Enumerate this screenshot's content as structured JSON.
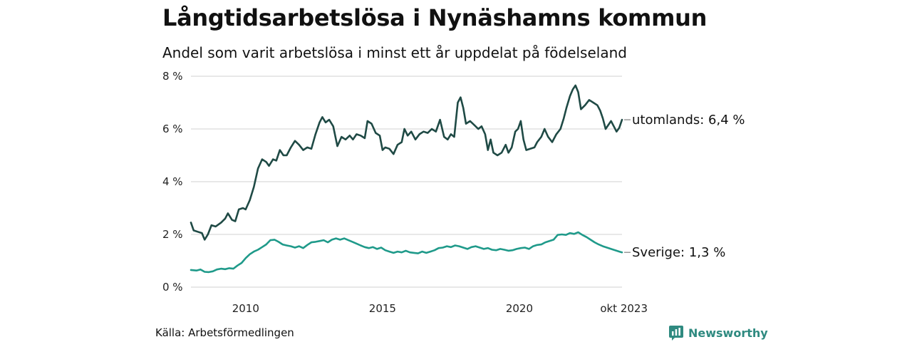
{
  "title": "Långtidsarbetslösa i Nynäshamns kommun",
  "subtitle": "Andel som varit arbetslösa i minst ett år uppdelat på födelseland",
  "source": "Källa: Arbetsförmedlingen",
  "brand": "Newsworthy",
  "colors": {
    "utomlands": "#1f4a45",
    "sverige": "#1f9a8a",
    "grid": "#d9d9d9",
    "brand": "#2f8a80"
  },
  "chart_data": {
    "type": "line",
    "title": "Långtidsarbetslösa i Nynäshamns kommun",
    "subtitle": "Andel som varit arbetslösa i minst ett år uppdelat på födelseland",
    "xlabel": "",
    "ylabel": "",
    "x_start": 2008.0,
    "x_end": 2023.75,
    "xlim": [
      2008.0,
      2023.75
    ],
    "ylim": [
      0,
      8
    ],
    "y_ticks": [
      {
        "value": 0,
        "label": "0 %"
      },
      {
        "value": 2,
        "label": "2 %"
      },
      {
        "value": 4,
        "label": "4 %"
      },
      {
        "value": 6,
        "label": "6 %"
      },
      {
        "value": 8,
        "label": "8 %"
      }
    ],
    "x_ticks": [
      {
        "value": 2010,
        "label": "2010"
      },
      {
        "value": 2015,
        "label": "2015"
      },
      {
        "value": 2020,
        "label": "2020"
      },
      {
        "value": 2023.75,
        "label": "okt 2023"
      }
    ],
    "series": [
      {
        "name": "utomlands",
        "end_label": "utomlands: 6,4 %",
        "points": [
          [
            2008.0,
            2.45
          ],
          [
            2008.1,
            2.15
          ],
          [
            2008.25,
            2.1
          ],
          [
            2008.4,
            2.05
          ],
          [
            2008.5,
            1.8
          ],
          [
            2008.62,
            2.0
          ],
          [
            2008.75,
            2.35
          ],
          [
            2008.9,
            2.3
          ],
          [
            2009.1,
            2.45
          ],
          [
            2009.25,
            2.6
          ],
          [
            2009.35,
            2.8
          ],
          [
            2009.5,
            2.55
          ],
          [
            2009.62,
            2.5
          ],
          [
            2009.75,
            2.95
          ],
          [
            2009.9,
            3.0
          ],
          [
            2010.0,
            2.95
          ],
          [
            2010.15,
            3.3
          ],
          [
            2010.3,
            3.8
          ],
          [
            2010.45,
            4.5
          ],
          [
            2010.6,
            4.85
          ],
          [
            2010.75,
            4.75
          ],
          [
            2010.85,
            4.6
          ],
          [
            2011.0,
            4.85
          ],
          [
            2011.12,
            4.8
          ],
          [
            2011.25,
            5.2
          ],
          [
            2011.38,
            5.0
          ],
          [
            2011.5,
            5.0
          ],
          [
            2011.65,
            5.3
          ],
          [
            2011.8,
            5.55
          ],
          [
            2011.95,
            5.4
          ],
          [
            2012.1,
            5.2
          ],
          [
            2012.25,
            5.3
          ],
          [
            2012.4,
            5.25
          ],
          [
            2012.55,
            5.8
          ],
          [
            2012.7,
            6.25
          ],
          [
            2012.8,
            6.45
          ],
          [
            2012.92,
            6.25
          ],
          [
            2013.05,
            6.35
          ],
          [
            2013.2,
            6.1
          ],
          [
            2013.35,
            5.35
          ],
          [
            2013.5,
            5.7
          ],
          [
            2013.65,
            5.6
          ],
          [
            2013.8,
            5.75
          ],
          [
            2013.92,
            5.6
          ],
          [
            2014.05,
            5.8
          ],
          [
            2014.2,
            5.75
          ],
          [
            2014.35,
            5.65
          ],
          [
            2014.45,
            6.3
          ],
          [
            2014.6,
            6.2
          ],
          [
            2014.75,
            5.85
          ],
          [
            2014.9,
            5.75
          ],
          [
            2015.0,
            5.2
          ],
          [
            2015.1,
            5.3
          ],
          [
            2015.25,
            5.25
          ],
          [
            2015.4,
            5.05
          ],
          [
            2015.55,
            5.4
          ],
          [
            2015.7,
            5.5
          ],
          [
            2015.8,
            6.0
          ],
          [
            2015.92,
            5.75
          ],
          [
            2016.05,
            5.9
          ],
          [
            2016.2,
            5.6
          ],
          [
            2016.35,
            5.8
          ],
          [
            2016.5,
            5.9
          ],
          [
            2016.65,
            5.85
          ],
          [
            2016.8,
            6.0
          ],
          [
            2016.95,
            5.9
          ],
          [
            2017.1,
            6.35
          ],
          [
            2017.25,
            5.7
          ],
          [
            2017.38,
            5.6
          ],
          [
            2017.5,
            5.8
          ],
          [
            2017.62,
            5.7
          ],
          [
            2017.75,
            7.0
          ],
          [
            2017.85,
            7.2
          ],
          [
            2017.95,
            6.8
          ],
          [
            2018.05,
            6.2
          ],
          [
            2018.2,
            6.3
          ],
          [
            2018.35,
            6.15
          ],
          [
            2018.5,
            6.0
          ],
          [
            2018.62,
            6.1
          ],
          [
            2018.75,
            5.8
          ],
          [
            2018.85,
            5.2
          ],
          [
            2018.95,
            5.6
          ],
          [
            2019.05,
            5.1
          ],
          [
            2019.2,
            5.0
          ],
          [
            2019.35,
            5.1
          ],
          [
            2019.5,
            5.4
          ],
          [
            2019.6,
            5.1
          ],
          [
            2019.72,
            5.3
          ],
          [
            2019.85,
            5.9
          ],
          [
            2019.95,
            6.0
          ],
          [
            2020.05,
            6.3
          ],
          [
            2020.15,
            5.6
          ],
          [
            2020.25,
            5.2
          ],
          [
            2020.4,
            5.25
          ],
          [
            2020.55,
            5.3
          ],
          [
            2020.65,
            5.5
          ],
          [
            2020.8,
            5.7
          ],
          [
            2020.92,
            6.0
          ],
          [
            2021.05,
            5.7
          ],
          [
            2021.2,
            5.5
          ],
          [
            2021.35,
            5.8
          ],
          [
            2021.5,
            6.0
          ],
          [
            2021.62,
            6.4
          ],
          [
            2021.72,
            6.8
          ],
          [
            2021.85,
            7.25
          ],
          [
            2021.95,
            7.5
          ],
          [
            2022.05,
            7.65
          ],
          [
            2022.15,
            7.4
          ],
          [
            2022.25,
            6.75
          ],
          [
            2022.4,
            6.9
          ],
          [
            2022.55,
            7.1
          ],
          [
            2022.7,
            7.0
          ],
          [
            2022.85,
            6.9
          ],
          [
            2022.95,
            6.7
          ],
          [
            2023.05,
            6.4
          ],
          [
            2023.15,
            6.0
          ],
          [
            2023.25,
            6.15
          ],
          [
            2023.35,
            6.3
          ],
          [
            2023.45,
            6.1
          ],
          [
            2023.55,
            5.9
          ],
          [
            2023.65,
            6.05
          ],
          [
            2023.75,
            6.35
          ]
        ]
      },
      {
        "name": "Sverige",
        "end_label": "Sverige: 1,3 %",
        "points": [
          [
            2008.0,
            0.65
          ],
          [
            2008.2,
            0.63
          ],
          [
            2008.35,
            0.67
          ],
          [
            2008.5,
            0.58
          ],
          [
            2008.65,
            0.57
          ],
          [
            2008.8,
            0.6
          ],
          [
            2008.95,
            0.67
          ],
          [
            2009.1,
            0.7
          ],
          [
            2009.25,
            0.68
          ],
          [
            2009.4,
            0.72
          ],
          [
            2009.55,
            0.7
          ],
          [
            2009.7,
            0.82
          ],
          [
            2009.85,
            0.92
          ],
          [
            2010.0,
            1.1
          ],
          [
            2010.15,
            1.25
          ],
          [
            2010.3,
            1.35
          ],
          [
            2010.45,
            1.42
          ],
          [
            2010.6,
            1.52
          ],
          [
            2010.75,
            1.62
          ],
          [
            2010.9,
            1.78
          ],
          [
            2011.05,
            1.8
          ],
          [
            2011.2,
            1.72
          ],
          [
            2011.35,
            1.62
          ],
          [
            2011.5,
            1.58
          ],
          [
            2011.65,
            1.55
          ],
          [
            2011.8,
            1.5
          ],
          [
            2011.95,
            1.55
          ],
          [
            2012.1,
            1.48
          ],
          [
            2012.25,
            1.6
          ],
          [
            2012.4,
            1.7
          ],
          [
            2012.55,
            1.72
          ],
          [
            2012.7,
            1.75
          ],
          [
            2012.85,
            1.78
          ],
          [
            2013.0,
            1.7
          ],
          [
            2013.15,
            1.8
          ],
          [
            2013.3,
            1.85
          ],
          [
            2013.45,
            1.8
          ],
          [
            2013.6,
            1.85
          ],
          [
            2013.75,
            1.78
          ],
          [
            2013.9,
            1.72
          ],
          [
            2014.05,
            1.65
          ],
          [
            2014.2,
            1.58
          ],
          [
            2014.35,
            1.52
          ],
          [
            2014.5,
            1.48
          ],
          [
            2014.65,
            1.52
          ],
          [
            2014.8,
            1.45
          ],
          [
            2014.95,
            1.5
          ],
          [
            2015.1,
            1.4
          ],
          [
            2015.25,
            1.35
          ],
          [
            2015.4,
            1.3
          ],
          [
            2015.55,
            1.35
          ],
          [
            2015.7,
            1.32
          ],
          [
            2015.85,
            1.38
          ],
          [
            2016.0,
            1.32
          ],
          [
            2016.15,
            1.3
          ],
          [
            2016.3,
            1.28
          ],
          [
            2016.45,
            1.35
          ],
          [
            2016.6,
            1.3
          ],
          [
            2016.75,
            1.35
          ],
          [
            2016.9,
            1.4
          ],
          [
            2017.05,
            1.48
          ],
          [
            2017.2,
            1.5
          ],
          [
            2017.35,
            1.55
          ],
          [
            2017.5,
            1.52
          ],
          [
            2017.65,
            1.58
          ],
          [
            2017.8,
            1.55
          ],
          [
            2017.95,
            1.5
          ],
          [
            2018.1,
            1.45
          ],
          [
            2018.25,
            1.52
          ],
          [
            2018.4,
            1.55
          ],
          [
            2018.55,
            1.5
          ],
          [
            2018.7,
            1.45
          ],
          [
            2018.85,
            1.48
          ],
          [
            2019.0,
            1.42
          ],
          [
            2019.15,
            1.4
          ],
          [
            2019.3,
            1.45
          ],
          [
            2019.45,
            1.42
          ],
          [
            2019.6,
            1.38
          ],
          [
            2019.75,
            1.4
          ],
          [
            2019.9,
            1.45
          ],
          [
            2020.05,
            1.48
          ],
          [
            2020.2,
            1.5
          ],
          [
            2020.35,
            1.45
          ],
          [
            2020.5,
            1.55
          ],
          [
            2020.65,
            1.6
          ],
          [
            2020.8,
            1.62
          ],
          [
            2020.95,
            1.7
          ],
          [
            2021.1,
            1.75
          ],
          [
            2021.25,
            1.8
          ],
          [
            2021.4,
            1.98
          ],
          [
            2021.55,
            2.0
          ],
          [
            2021.7,
            1.98
          ],
          [
            2021.85,
            2.05
          ],
          [
            2022.0,
            2.02
          ],
          [
            2022.15,
            2.08
          ],
          [
            2022.3,
            1.98
          ],
          [
            2022.45,
            1.9
          ],
          [
            2022.6,
            1.8
          ],
          [
            2022.75,
            1.7
          ],
          [
            2022.9,
            1.62
          ],
          [
            2023.05,
            1.55
          ],
          [
            2023.2,
            1.5
          ],
          [
            2023.35,
            1.45
          ],
          [
            2023.5,
            1.4
          ],
          [
            2023.65,
            1.35
          ],
          [
            2023.75,
            1.32
          ]
        ]
      }
    ]
  }
}
